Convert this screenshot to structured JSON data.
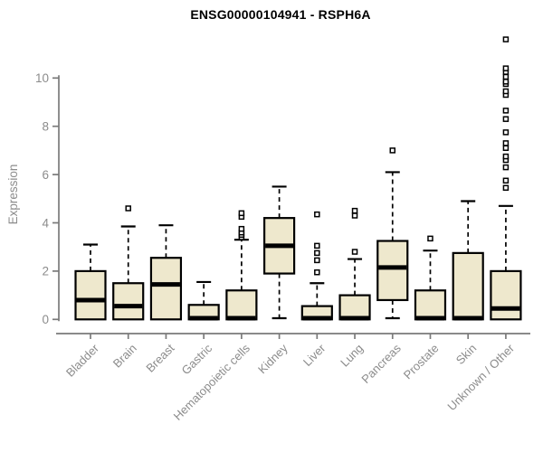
{
  "chart_data": {
    "type": "box",
    "title": "ENSG00000104941 - RSPH6A",
    "xlabel": "",
    "ylabel": "Expression",
    "ylim": [
      0,
      11.6
    ],
    "yticks": [
      0,
      2,
      4,
      6,
      8,
      10
    ],
    "grid": false,
    "legend": false,
    "colors": {
      "box_fill": "#EEE8CD",
      "box_border": "#000000",
      "median": "#000000",
      "whisker": "#000000",
      "outlier_fill": "#FFFFFF",
      "axis_line": "#7A7A7A",
      "tick_label": "#8C8C8C",
      "title": "#000000",
      "background": "#FFFFFF"
    },
    "categories": [
      "Bladder",
      "Brain",
      "Breast",
      "Gastric",
      "Hematopoietic cells",
      "Kidney",
      "Liver",
      "Lung",
      "Pancreas",
      "Prostate",
      "Skin",
      "Unknown / Other"
    ],
    "boxes": [
      {
        "label": "Bladder",
        "q1": 0,
        "median": 0.8,
        "q3": 2.0,
        "whisker_low": null,
        "whisker_high": 3.1,
        "outliers": []
      },
      {
        "label": "Brain",
        "q1": 0,
        "median": 0.55,
        "q3": 1.5,
        "whisker_low": null,
        "whisker_high": 3.85,
        "outliers": [
          4.6
        ]
      },
      {
        "label": "Breast",
        "q1": 0,
        "median": 1.45,
        "q3": 2.55,
        "whisker_low": null,
        "whisker_high": 3.9,
        "outliers": []
      },
      {
        "label": "Gastric",
        "q1": 0,
        "median": 0.05,
        "q3": 0.6,
        "whisker_low": null,
        "whisker_high": 1.55,
        "outliers": []
      },
      {
        "label": "Hematopoietic cells",
        "q1": 0,
        "median": 0.05,
        "q3": 1.2,
        "whisker_low": null,
        "whisker_high": 3.3,
        "outliers": [
          3.4,
          3.5,
          3.6,
          3.75,
          4.25,
          4.4
        ]
      },
      {
        "label": "Kidney",
        "q1": 1.9,
        "median": 3.05,
        "q3": 4.2,
        "whisker_low": 0.05,
        "whisker_high": 5.5,
        "outliers": []
      },
      {
        "label": "Liver",
        "q1": 0,
        "median": 0.05,
        "q3": 0.55,
        "whisker_low": null,
        "whisker_high": 1.5,
        "outliers": [
          1.95,
          2.45,
          2.75,
          3.05,
          4.35
        ]
      },
      {
        "label": "Lung",
        "q1": 0,
        "median": 0.05,
        "q3": 1.0,
        "whisker_low": null,
        "whisker_high": 2.5,
        "outliers": [
          2.8,
          4.3,
          4.5
        ]
      },
      {
        "label": "Pancreas",
        "q1": 0.8,
        "median": 2.15,
        "q3": 3.25,
        "whisker_low": 0.05,
        "whisker_high": 6.1,
        "outliers": [
          7.0
        ]
      },
      {
        "label": "Prostate",
        "q1": 0,
        "median": 0.05,
        "q3": 1.2,
        "whisker_low": null,
        "whisker_high": 2.85,
        "outliers": [
          3.35
        ]
      },
      {
        "label": "Skin",
        "q1": 0,
        "median": 0.05,
        "q3": 2.75,
        "whisker_low": null,
        "whisker_high": 4.9,
        "outliers": []
      },
      {
        "label": "Unknown / Other",
        "q1": 0,
        "median": 0.45,
        "q3": 2.0,
        "whisker_low": null,
        "whisker_high": 4.7,
        "outliers": [
          5.45,
          5.75,
          6.3,
          6.6,
          6.75,
          7.1,
          7.3,
          7.75,
          8.3,
          8.65,
          9.3,
          9.45,
          9.75,
          9.85,
          10.05,
          10.25,
          10.4,
          11.6
        ]
      }
    ]
  }
}
